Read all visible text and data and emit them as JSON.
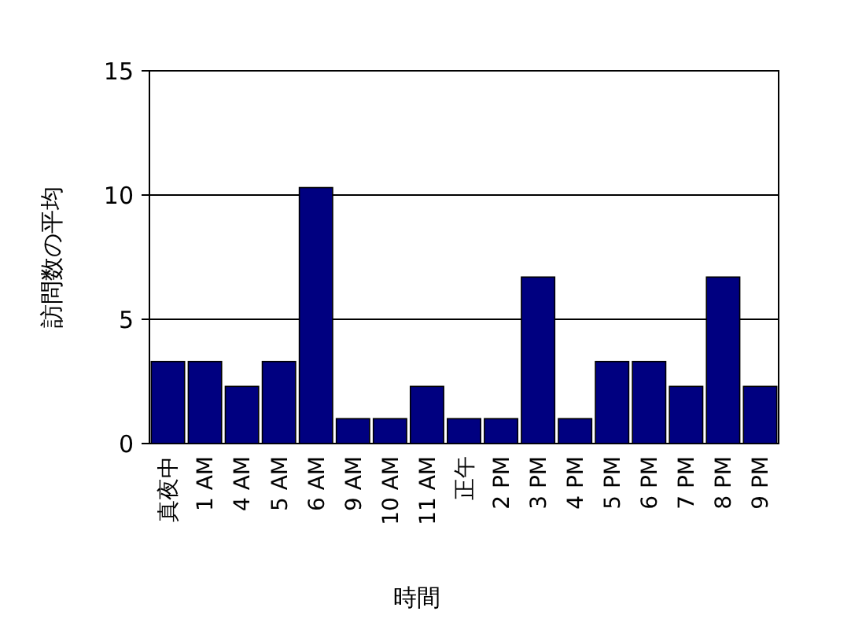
{
  "chart_data": {
    "type": "bar",
    "xlabel": "時間",
    "ylabel": "訪問数の平均",
    "categories": [
      "真夜中",
      "1 AM",
      "4 AM",
      "5 AM",
      "6 AM",
      "9 AM",
      "10 AM",
      "11 AM",
      "正午",
      "2 PM",
      "3 PM",
      "4 PM",
      "5 PM",
      "6 PM",
      "7 PM",
      "8 PM",
      "9 PM"
    ],
    "series": [
      {
        "color": "#000080",
        "values": [
          3.3,
          3.3,
          2.3,
          3.3,
          10.3,
          1,
          1,
          2.3,
          1,
          1,
          6.7,
          1,
          3.3,
          3.3,
          2.3,
          6.7,
          2.3
        ]
      }
    ],
    "ylim": [
      0,
      15
    ],
    "yticks": [
      0,
      5,
      10,
      15
    ],
    "grid": "y"
  }
}
